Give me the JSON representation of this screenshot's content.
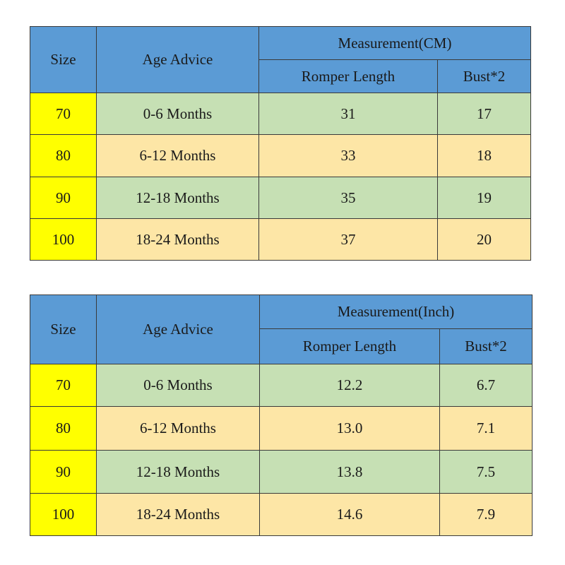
{
  "tables": [
    {
      "header": {
        "size": "Size",
        "age_advice": "Age Advice",
        "measurement": "Measurement(CM)",
        "romper_length": "Romper Length",
        "bust": "Bust*2"
      },
      "rows": [
        [
          "70",
          "0-6 Months",
          "31",
          "17"
        ],
        [
          "80",
          "6-12 Months",
          "33",
          "18"
        ],
        [
          "90",
          "12-18 Months",
          "35",
          "19"
        ],
        [
          "100",
          "18-24 Months",
          "37",
          "20"
        ]
      ]
    },
    {
      "header": {
        "size": "Size",
        "age_advice": "Age Advice",
        "measurement": "Measurement(Inch)",
        "romper_length": "Romper Length",
        "bust": "Bust*2"
      },
      "rows": [
        [
          "70",
          "0-6 Months",
          "12.2",
          "6.7"
        ],
        [
          "80",
          "6-12 Months",
          "13.0",
          "7.1"
        ],
        [
          "90",
          "12-18 Months",
          "13.8",
          "7.5"
        ],
        [
          "100",
          "18-24 Months",
          "14.6",
          "7.9"
        ]
      ]
    }
  ]
}
